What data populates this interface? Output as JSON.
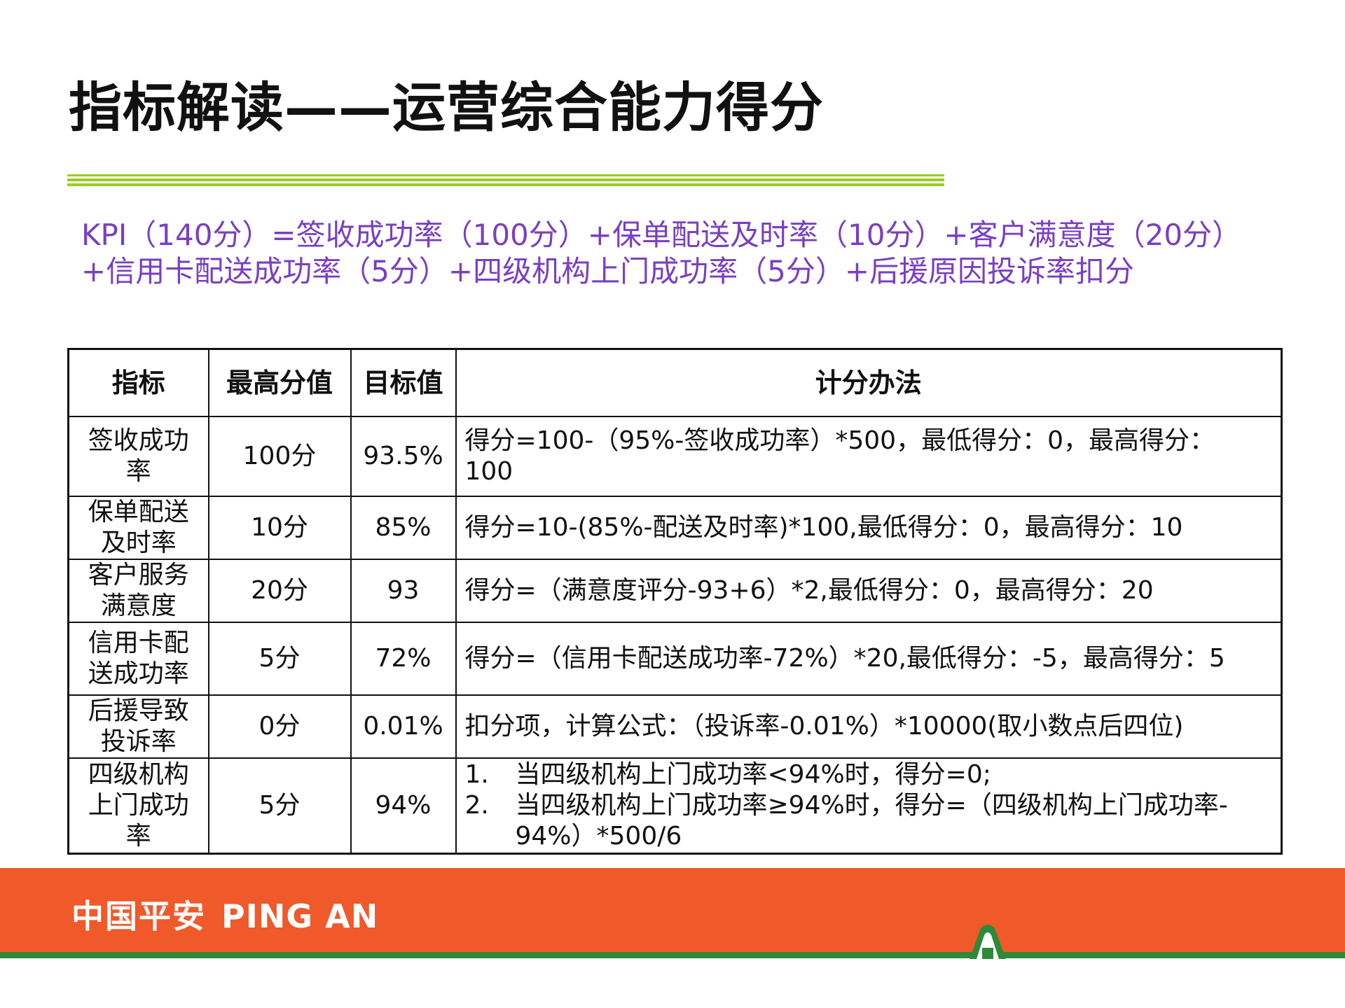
{
  "slide": {
    "title": "指标解读——运营综合能力得分",
    "formula_lines": [
      "KPI（140分）=签收成功率（100分）+保单配送及时率（10分）+客户满意度（20分）",
      "+信用卡配送成功率（5分）+四级机构上门成功率（5分）+后援原因投诉率扣分"
    ]
  },
  "table": {
    "headers": [
      "指标",
      "最高分值",
      "目标值",
      "计分办法"
    ],
    "rows": [
      {
        "indicator": [
          "签收成功",
          "率"
        ],
        "max": "100分",
        "target": "93.5%",
        "method": [
          "得分=100-（95%-签收成功率）*500，最低得分：0，最高得分：",
          "100"
        ]
      },
      {
        "indicator": [
          "保单配送",
          "及时率"
        ],
        "max": "10分",
        "target": "85%",
        "method": [
          "得分=10-(85%-配送及时率)*100,最低得分：0，最高得分：10"
        ]
      },
      {
        "indicator": [
          "客户服务",
          "满意度"
        ],
        "max": "20分",
        "target": "93",
        "method": [
          "得分=（满意度评分-93+6）*2,最低得分：0，最高得分：20"
        ]
      },
      {
        "indicator": [
          "信用卡配",
          "送成功率"
        ],
        "max": "5分",
        "target": "72%",
        "method": [
          "得分=（信用卡配送成功率-72%）*20,最低得分：-5，最高得分：5"
        ]
      },
      {
        "indicator": [
          "后援导致",
          "投诉率"
        ],
        "max": "0分",
        "target": "0.01%",
        "method": [
          "扣分项，计算公式：（投诉率-0.01%）*10000(取小数点后四位)"
        ]
      },
      {
        "indicator": [
          "四级机构",
          "上门成功",
          "率"
        ],
        "max": "5分",
        "target": "94%",
        "list": [
          {
            "num": "1.",
            "lines": [
              "当四级机构上门成功率<94%时，得分=0;"
            ]
          },
          {
            "num": "2.",
            "lines": [
              "当四级机构上门成功率≥94%时，得分=（四级机构上门成功率-",
              "94%）*500/6"
            ]
          }
        ]
      }
    ]
  },
  "footer": {
    "brand_cn": "中国平安",
    "brand_en": "PING AN",
    "colors": {
      "band": "#f0592a",
      "stripe": "#2d8a3a",
      "title_rule": "#9acc24",
      "formula_text": "#7a3fc2"
    }
  }
}
